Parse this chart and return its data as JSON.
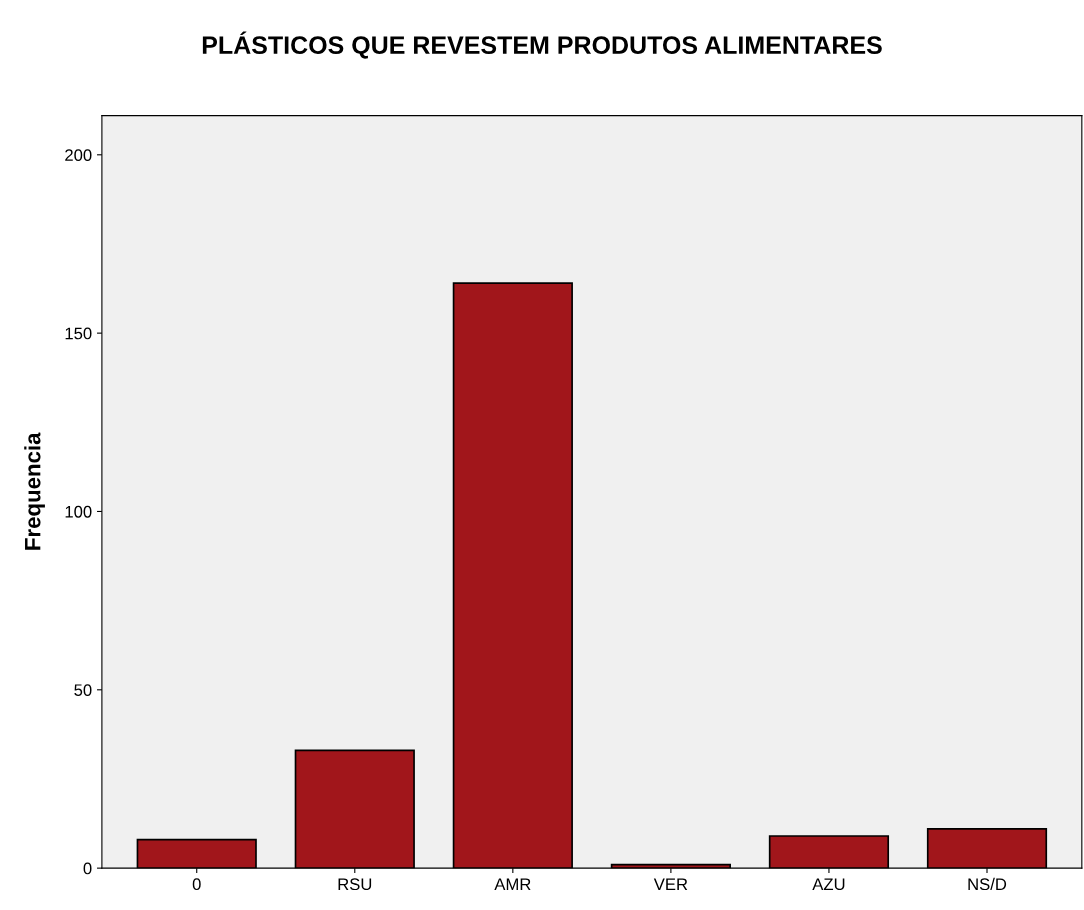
{
  "chart_data": {
    "type": "bar",
    "title": "PLÁSTICOS QUE REVESTEM PRODUTOS ALIMENTARES",
    "ylabel": "Frequencia",
    "categories": [
      "0",
      "RSU",
      "AMR",
      "VER",
      "AZU",
      "NS/D"
    ],
    "values": [
      8,
      33,
      164,
      1,
      9,
      11
    ],
    "color": "#a1161b",
    "ylim": [
      0,
      211
    ],
    "yticks": [
      0,
      50,
      100,
      150,
      200
    ],
    "grid": false
  }
}
